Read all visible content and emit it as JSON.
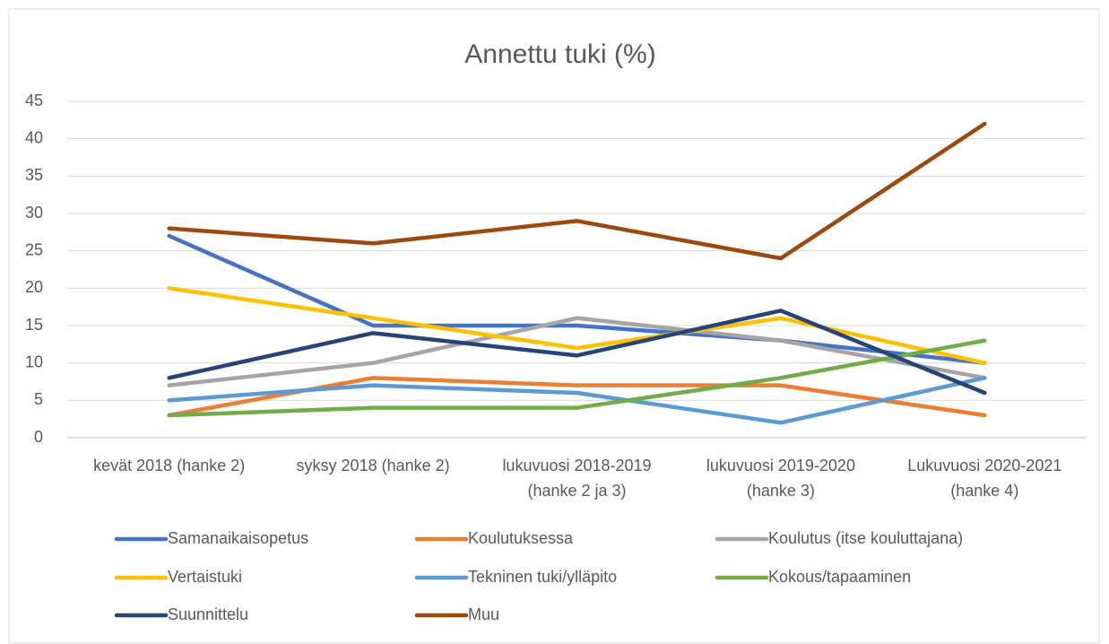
{
  "chart_data": {
    "type": "line",
    "title": "Annettu tuki (%)",
    "categories": [
      "kevät 2018 (hanke 2)",
      "syksy 2018 (hanke 2)",
      "lukuvuosi 2018-2019 (hanke 2 ja 3)",
      "lukuvuosi 2019-2020 (hanke 3)",
      "Lukuvuosi 2020-2021 (hanke 4)"
    ],
    "series": [
      {
        "name": "Samanaikaisopetus",
        "color": "#4472c4",
        "values": [
          27,
          15,
          15,
          13,
          10
        ]
      },
      {
        "name": "Koulutuksessa",
        "color": "#ed7d31",
        "values": [
          3,
          8,
          7,
          7,
          3
        ]
      },
      {
        "name": "Koulutus (itse kouluttajana)",
        "color": "#a5a5a5",
        "values": [
          7,
          10,
          16,
          13,
          8
        ]
      },
      {
        "name": "Vertaistuki",
        "color": "#ffc000",
        "values": [
          20,
          16,
          12,
          16,
          10
        ]
      },
      {
        "name": "Tekninen tuki/ylläpito",
        "color": "#5b9bd5",
        "values": [
          5,
          7,
          6,
          2,
          8
        ]
      },
      {
        "name": "Kokous/tapaaminen",
        "color": "#70ad47",
        "values": [
          3,
          4,
          4,
          8,
          13
        ]
      },
      {
        "name": "Suunnittelu",
        "color": "#264478",
        "values": [
          8,
          14,
          11,
          17,
          6
        ]
      },
      {
        "name": "Muu",
        "color": "#9e480e",
        "values": [
          28,
          26,
          29,
          24,
          42
        ]
      }
    ],
    "ylim": [
      0,
      45
    ],
    "yticks": [
      0,
      5,
      10,
      15,
      20,
      25,
      30,
      35,
      40,
      45
    ],
    "grid": true,
    "legend": "bottom"
  }
}
